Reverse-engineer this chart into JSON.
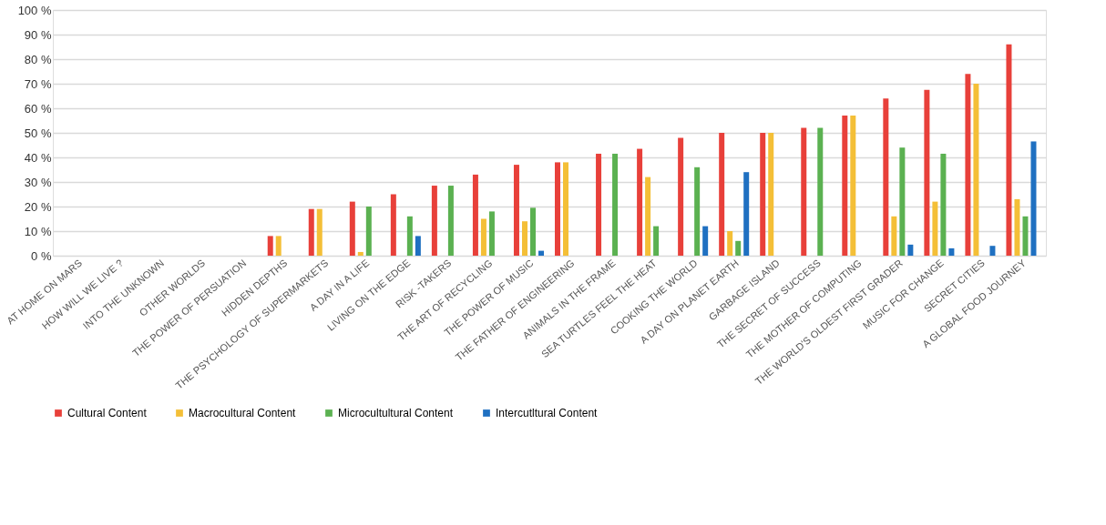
{
  "chart_data": {
    "type": "bar",
    "categories": [
      "AT HOME ON MARS",
      "HOW WILL WE LIVE ?",
      "INTO THE UNKNOWN",
      "OTHER WORLDS",
      "THE POWER OF PERSUATION",
      "HIDDEN DEPTHS",
      "THE PSYCHOLOGY OF SUPERMARKETS",
      "A DAY IN A LIFE",
      "LIVING ON THE EDGE",
      "RISK -TAKERS",
      "THE ART OF RECYCLING",
      "THE POWER OF MUSIC",
      "THE FATHER OF ENGINEERING",
      "ANIMALS IN THE FRAME",
      "SEA TURTLES FEEL THE HEAT",
      "COOKING THE WORLD",
      "A DAY ON PLANET EARTH",
      "GARBAGE ISLAND",
      "THE SECRET OF SUCCESS",
      "THE MOTHER OF COMPUTING",
      "THE WORLD'S OLDEST FIRST GRADER",
      "MUSIC FOR CHANGE",
      "SECRET CITIES",
      "A GLOBAL FOOD JOURNEY"
    ],
    "series": [
      {
        "name": "Cultural Content",
        "color": "#e8403a",
        "values": [
          null,
          null,
          null,
          null,
          null,
          8,
          19,
          22,
          25,
          28.5,
          33,
          37,
          38,
          41.5,
          43.5,
          48,
          50,
          50,
          52,
          57,
          64,
          67.5,
          74,
          86
        ]
      },
      {
        "name": "Macrocultural Content",
        "color": "#f4bf37",
        "values": [
          null,
          null,
          null,
          null,
          null,
          8,
          19,
          1.5,
          null,
          null,
          15,
          14,
          38,
          null,
          32,
          null,
          10,
          50,
          null,
          57,
          16,
          22,
          70,
          23
        ]
      },
      {
        "name": "Microcultultural Content",
        "color": "#5bb151",
        "values": [
          null,
          null,
          null,
          null,
          null,
          null,
          null,
          20,
          16,
          28.5,
          18,
          19.5,
          null,
          41.5,
          12,
          36,
          6,
          null,
          52,
          null,
          44,
          41.5,
          null,
          16
        ]
      },
      {
        "name": "Intercutltural Content",
        "color": "#1f70c1",
        "values": [
          null,
          null,
          null,
          null,
          null,
          null,
          null,
          null,
          8,
          null,
          null,
          2,
          null,
          null,
          null,
          12,
          34,
          null,
          null,
          null,
          4.5,
          3,
          4,
          46.5
        ]
      }
    ],
    "ylim": [
      0,
      100
    ],
    "yticks": [
      {
        "value": 0,
        "label": "0 %"
      },
      {
        "value": 10,
        "label": "10 %"
      },
      {
        "value": 20,
        "label": "20 %"
      },
      {
        "value": 30,
        "label": "30 %"
      },
      {
        "value": 40,
        "label": "40 %"
      },
      {
        "value": 50,
        "label": "50 %"
      },
      {
        "value": 60,
        "label": "60 %"
      },
      {
        "value": 70,
        "label": "70 %"
      },
      {
        "value": 80,
        "label": "80 %"
      },
      {
        "value": 90,
        "label": "90 %"
      },
      {
        "value": 100,
        "label": "100 %"
      }
    ],
    "grid": "y",
    "legend": "bottom"
  }
}
